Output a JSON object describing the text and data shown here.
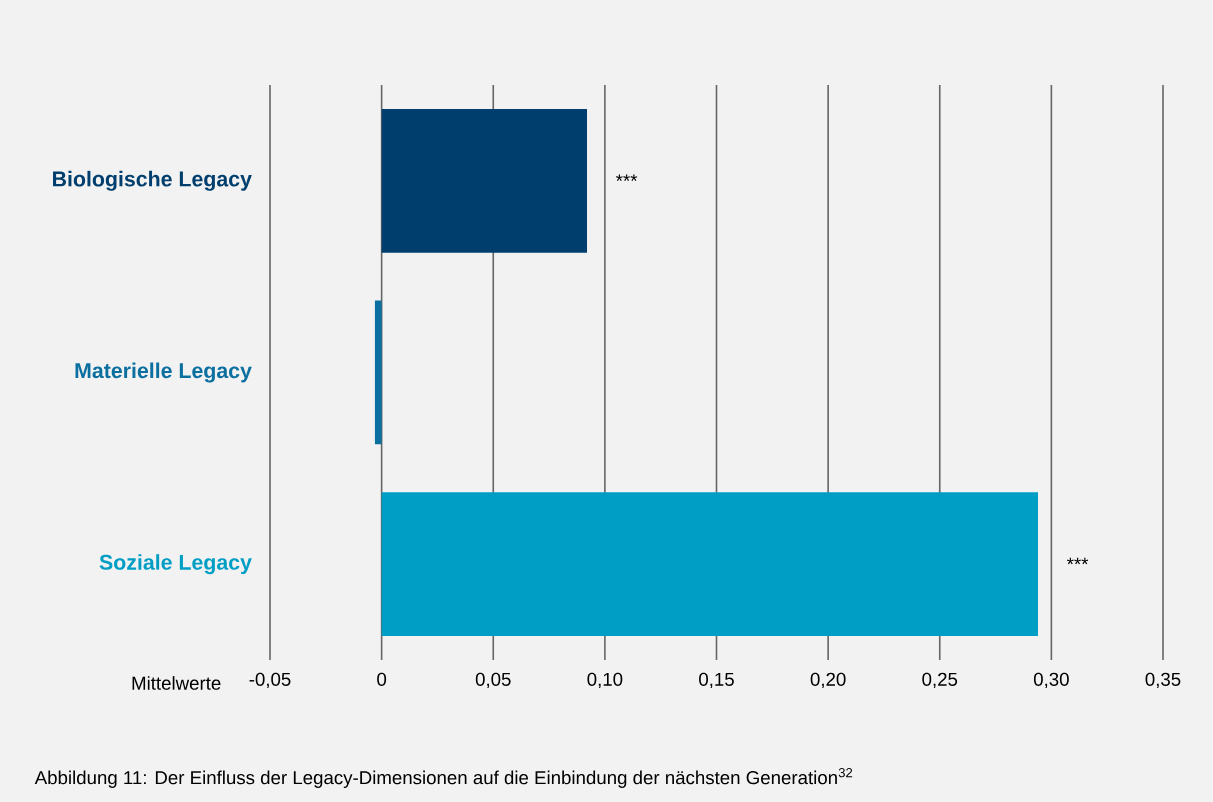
{
  "chart_data": {
    "type": "bar",
    "orientation": "horizontal",
    "categories": [
      "Biologische Legacy",
      "Materielle Legacy",
      "Soziale Legacy"
    ],
    "values": [
      0.092,
      -0.003,
      0.294
    ],
    "colors": [
      "#003f6d",
      "#0b6fa0",
      "#009ec5"
    ],
    "xlabel": "Mittelwerte",
    "xlim": [
      -0.05,
      0.35
    ],
    "xticks": [
      {
        "value": -0.05,
        "label": "-0,05"
      },
      {
        "value": 0,
        "label": "0"
      },
      {
        "value": 0.05,
        "label": "0,05"
      },
      {
        "value": 0.1,
        "label": "0,10"
      },
      {
        "value": 0.15,
        "label": "0,15"
      },
      {
        "value": 0.2,
        "label": "0,20"
      },
      {
        "value": 0.25,
        "label": "0,25"
      },
      {
        "value": 0.3,
        "label": "0,30"
      },
      {
        "value": 0.35,
        "label": "0,35"
      }
    ],
    "grid": "x",
    "annotations": [
      {
        "text": "***",
        "x": 0.092,
        "y": "Biologische Legacy"
      },
      {
        "text": "***",
        "x": 0.294,
        "y": "Soziale Legacy"
      },
      "Abbildung 11: Der Einfluss der Legacy-Dimensionen auf die Einbindung der nächsten Generation$^{32}$"
    ]
  }
}
